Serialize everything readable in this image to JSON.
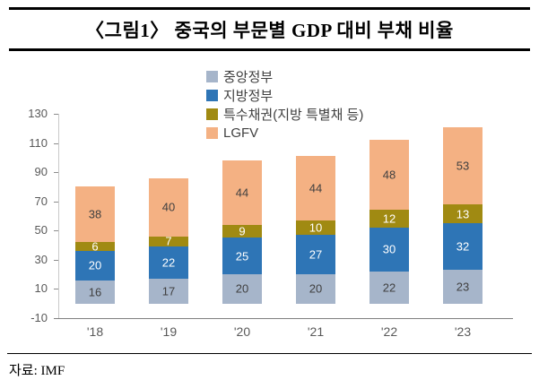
{
  "title": "〈그림1〉 중국의 부문별 GDP 대비 부채 비율",
  "source": "자료: IMF",
  "chart_data": {
    "type": "bar",
    "stacked": true,
    "title": "중국의 부문별 GDP 대비 부채 비율",
    "xlabel": "",
    "ylabel": "",
    "categories": [
      "'18",
      "'19",
      "'20",
      "'21",
      "'22",
      "'23"
    ],
    "series": [
      {
        "name": "중앙정부",
        "color": "#a6b5ca",
        "label_color": "#404040",
        "values": [
          16,
          17,
          20,
          20,
          22,
          23
        ]
      },
      {
        "name": "지방정부",
        "color": "#2e75b6",
        "label_color": "#ffffff",
        "values": [
          20,
          22,
          25,
          27,
          30,
          32
        ]
      },
      {
        "name": "특수채권(지방 특별채 등)",
        "color": "#a08a12",
        "label_color": "#ffffff",
        "values": [
          6,
          7,
          9,
          10,
          12,
          13
        ]
      },
      {
        "name": "LGFV",
        "color": "#f4b183",
        "label_color": "#404040",
        "values": [
          38,
          40,
          44,
          44,
          48,
          53
        ]
      }
    ],
    "totals": [
      80,
      86,
      98,
      101,
      112,
      121
    ],
    "ylim": [
      -10,
      130
    ],
    "yticks": [
      130,
      110,
      90,
      70,
      50,
      30,
      10,
      -10
    ],
    "grid": false,
    "legend_position": "top-center"
  }
}
